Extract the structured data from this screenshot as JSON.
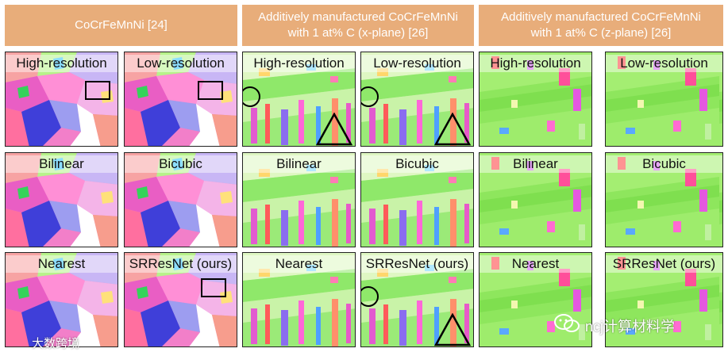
{
  "headers": [
    {
      "lines": [
        "CoCrFeMnNi [24]"
      ]
    },
    {
      "lines": [
        "Additively manufactured CoCrFeMnNi",
        "with 1 at% C (x-plane) [26]"
      ]
    },
    {
      "lines": [
        "Additively manufactured CoCrFeMnNi",
        "with 1 at% C (z-plane) [26]"
      ]
    }
  ],
  "tiles": {
    "r0c0": "High-resolution",
    "r0c1": "Low-resolution",
    "r0c2": "High-resolution",
    "r0c3": "Low-resolution",
    "r0c4": "High-resolution",
    "r0c5": "Low-resolution",
    "r1c0": "Bilinear",
    "r1c1": "Bicubic",
    "r1c2": "Bilinear",
    "r1c3": "Bicubic",
    "r1c4": "Bilinear",
    "r1c5": "Bicubic",
    "r2c0": "Nearest",
    "r2c1": "SRResNet (ours)",
    "r2c2": "Nearest",
    "r2c3": "SRResNet (ours)",
    "r2c4": "Nearest",
    "r2c5": "SRResNet (ours)"
  },
  "watermarks": {
    "left": "大数跨境",
    "right": "ncj计算材料学"
  },
  "icons": {
    "right_watermark": "wechat-icon"
  }
}
